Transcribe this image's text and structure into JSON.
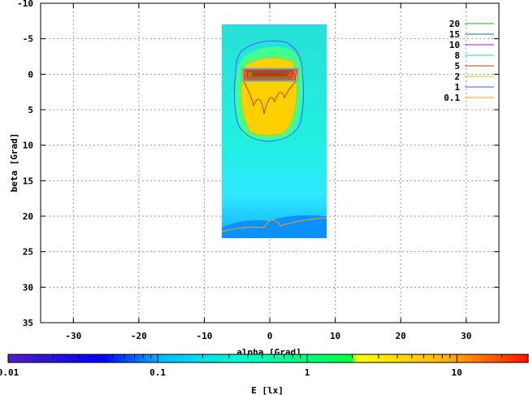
{
  "chart_data": {
    "type": "heatmap",
    "xlabel": "alpha [Grad]",
    "ylabel": "beta [Grad]",
    "xlim": [
      -35,
      35
    ],
    "ylim": [
      35,
      -10
    ],
    "x_ticks": [
      "-30",
      "-20",
      "-10",
      "0",
      "10",
      "20",
      "30"
    ],
    "x_tick_values": [
      -30,
      -20,
      -10,
      0,
      10,
      20,
      30
    ],
    "y_ticks": [
      "-10",
      "-5",
      "0",
      "5",
      "10",
      "15",
      "20",
      "25",
      "30",
      "35"
    ],
    "y_tick_values": [
      -10,
      -5,
      0,
      5,
      10,
      15,
      20,
      25,
      30,
      35
    ],
    "grid": true,
    "data_extent": {
      "alpha": [
        -7,
        9
      ],
      "beta": [
        -7,
        23
      ]
    },
    "contour_legend": {
      "position": "top-right",
      "entries": [
        {
          "label": "20",
          "value": 20,
          "color": "#00c000"
        },
        {
          "label": "15",
          "value": 15,
          "color": "#008080"
        },
        {
          "label": "10",
          "value": 10,
          "color": "#c000ff"
        },
        {
          "label": "8",
          "value": 8,
          "color": "#00e0e0"
        },
        {
          "label": "5",
          "value": 5,
          "color": "#c04000"
        },
        {
          "label": "2",
          "value": 2,
          "color": "#c8c800"
        },
        {
          "label": "1",
          "value": 1,
          "color": "#4060ff"
        },
        {
          "label": "0.1",
          "value": 0.1,
          "color": "#ffa000"
        }
      ]
    },
    "colorbar": {
      "label": "E [lx]",
      "scale": "log",
      "range": [
        0.01,
        30
      ],
      "ticks": [
        "0.01",
        "0.1",
        "1",
        "10"
      ],
      "tick_values": [
        0.01,
        0.1,
        1,
        10
      ],
      "colors": [
        "#4020c0",
        "#0000ff",
        "#00c0ff",
        "#00ffc0",
        "#00ff40",
        "#ffff00",
        "#ffa000",
        "#ff0000"
      ]
    }
  }
}
